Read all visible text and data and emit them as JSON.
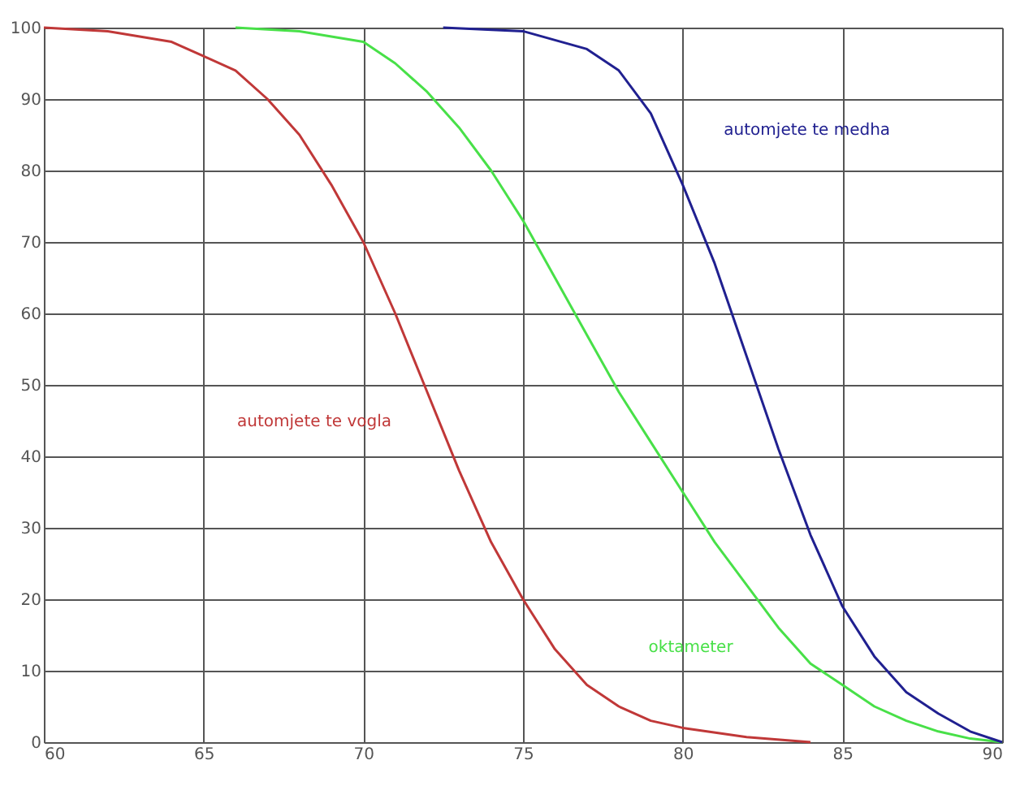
{
  "chart_data": {
    "type": "line",
    "xlim": [
      60,
      90
    ],
    "xticks": [
      60,
      65,
      70,
      75,
      80,
      85,
      90
    ],
    "ylim": [
      0,
      100
    ],
    "yticks": [
      0,
      10,
      20,
      30,
      40,
      50,
      60,
      70,
      80,
      90,
      100
    ],
    "grid": true,
    "marker": "none",
    "line_style": "solid",
    "series": [
      {
        "name": "automjete te vogla",
        "color": "#c03838",
        "x": [
          60,
          62,
          64,
          65,
          66,
          67,
          68,
          69,
          70,
          71,
          72,
          73,
          74,
          75,
          76,
          77,
          78,
          79,
          80,
          82,
          84
        ],
        "values": [
          100,
          99.5,
          98,
          96,
          94,
          90,
          85,
          78,
          70,
          60,
          49,
          38,
          28,
          20,
          13,
          8,
          5,
          3,
          2,
          0.7,
          0
        ]
      },
      {
        "name": "oktameter",
        "color": "#48e048",
        "x": [
          66,
          68,
          70,
          71,
          72,
          73,
          74,
          75,
          76,
          77,
          78,
          79,
          80,
          81,
          82,
          83,
          84,
          85,
          86,
          87,
          88,
          89,
          90
        ],
        "values": [
          100,
          99.5,
          98,
          95,
          91,
          86,
          80,
          73,
          65,
          57,
          49,
          42,
          35,
          28,
          22,
          16,
          11,
          8,
          5,
          3,
          1.5,
          0.5,
          0
        ]
      },
      {
        "name": "automjete te medha",
        "color": "#202090",
        "x": [
          72.5,
          75,
          77,
          78,
          79,
          80,
          81,
          82,
          83,
          84,
          85,
          86,
          87,
          88,
          89,
          90
        ],
        "values": [
          100,
          99.5,
          97,
          94,
          88,
          78,
          67,
          54,
          41,
          29,
          19,
          12,
          7,
          4,
          1.5,
          0
        ]
      }
    ]
  }
}
